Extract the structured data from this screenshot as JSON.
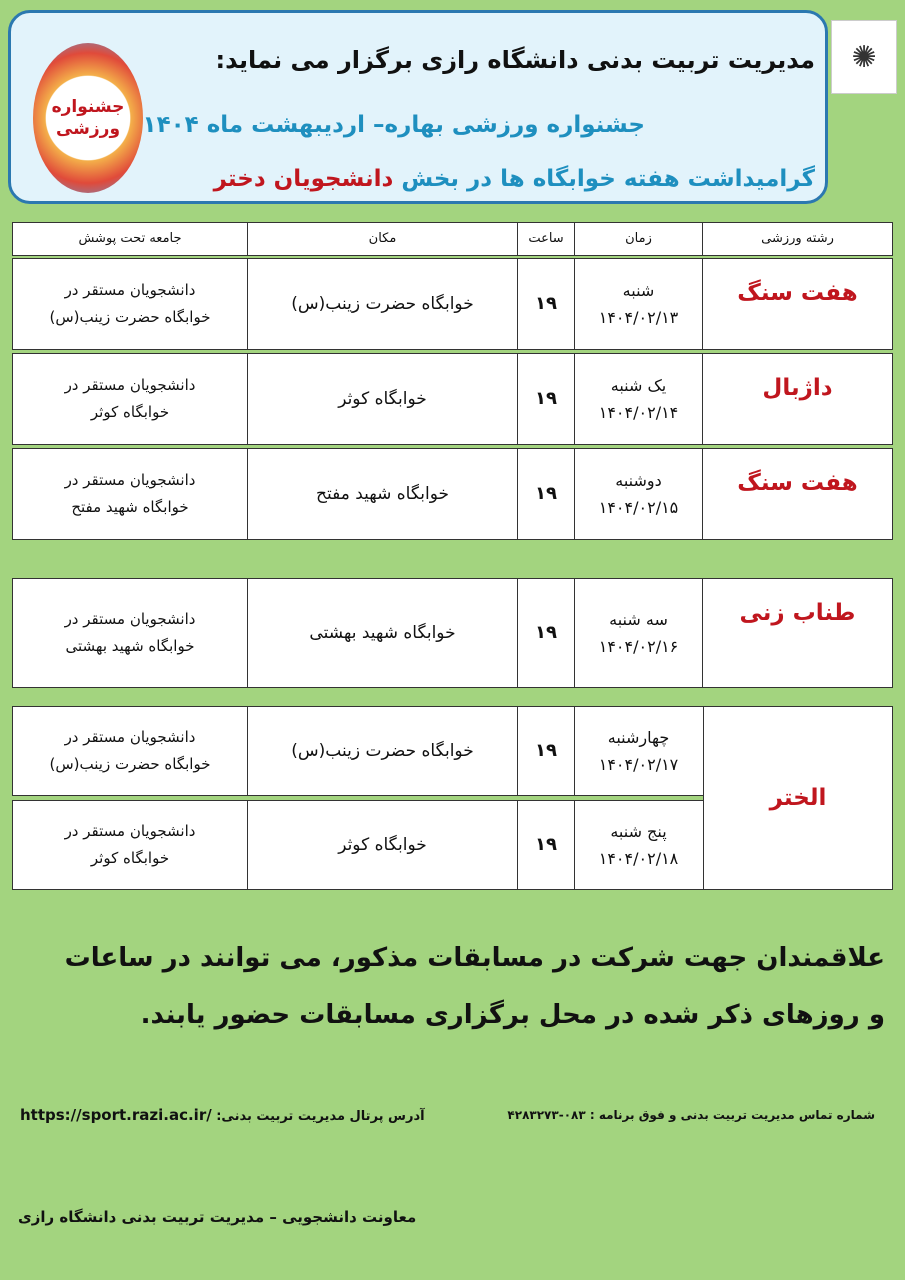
{
  "header": {
    "logo_icon": "razi-university-logo",
    "title": "مدیریت تربیت بدنی دانشگاه رازی برگزار می نماید:",
    "subtitle": "جشنواره ورزشی بهاره– اردیبهشت ماه ۱۴۰۴",
    "line3_prefix": "گرامیداشت هفته خوابگاه ها در بخش",
    "line3_highlight": "دانشجویان دختر",
    "badge_text": "جشنواره ورزشی",
    "colors": {
      "blue": "#1e8fbf",
      "red": "#c0161e",
      "background": "#a3d47f"
    }
  },
  "table": {
    "headers": {
      "sport": "رشته ورزشی",
      "time": "زمان",
      "hour": "ساعت",
      "place": "مکان",
      "audience": "جامعه تحت پوشش"
    },
    "rows": [
      {
        "sport": "هفت سنگ",
        "day": "شنبه",
        "date": "۱۴۰۴/۰۲/۱۳",
        "hour": "۱۹",
        "place": "خوابگاه حضرت زینب(س)",
        "aud1": "دانشجویان مستقر در",
        "aud2": "خوابگاه حضرت زینب(س)"
      },
      {
        "sport": "داژبال",
        "day": "یک شنبه",
        "date": "۱۴۰۴/۰۲/۱۴",
        "hour": "۱۹",
        "place": "خوابگاه کوثر",
        "aud1": "دانشجویان مستقر در",
        "aud2": "خوابگاه کوثر"
      },
      {
        "sport": "هفت سنگ",
        "day": "دوشنبه",
        "date": "۱۴۰۴/۰۲/۱۵",
        "hour": "۱۹",
        "place": "خوابگاه شهید مفتح",
        "aud1": "دانشجویان مستقر در",
        "aud2": "خوابگاه شهید مفتح"
      },
      {
        "sport": "طناب زنی",
        "day": "سه شنبه",
        "date": "۱۴۰۴/۰۲/۱۶",
        "hour": "۱۹",
        "place": "خوابگاه شهید بهشتی",
        "aud1": "دانشجویان مستقر در",
        "aud2": "خوابگاه شهید بهشتی"
      },
      {
        "sport": "الختر",
        "day": "چهارشنبه",
        "date": "۱۴۰۴/۰۲/۱۷",
        "hour": "۱۹",
        "place": "خوابگاه حضرت زینب(س)",
        "aud1": "دانشجویان مستقر در",
        "aud2": "خوابگاه حضرت زینب(س)"
      },
      {
        "sport": "الختر",
        "day": "پنج شنبه",
        "date": "۱۴۰۴/۰۲/۱۸",
        "hour": "۱۹",
        "place": "خوابگاه کوثر",
        "aud1": "دانشجویان مستقر در",
        "aud2": "خوابگاه کوثر"
      }
    ]
  },
  "notice": {
    "line1": "علاقمندان جهت شرکت در مسابقات مذکور، می توانند در ساعات",
    "line2": "و روزهای ذکر شده در محل برگزاری مسابقات حضور یابند."
  },
  "contact": "شماره تماس مدیریت تربیت بدنی و فوق برنامه : ۰۸۳-۴۲۸۳۲۷۳",
  "portal": {
    "label": "آدرس پرتال مدیریت تربیت بدنی:",
    "url": "https://sport.razi.ac.ir/"
  },
  "footer": "معاونت دانشجویی – مدیریت تربیت بدنی دانشگاه رازی"
}
